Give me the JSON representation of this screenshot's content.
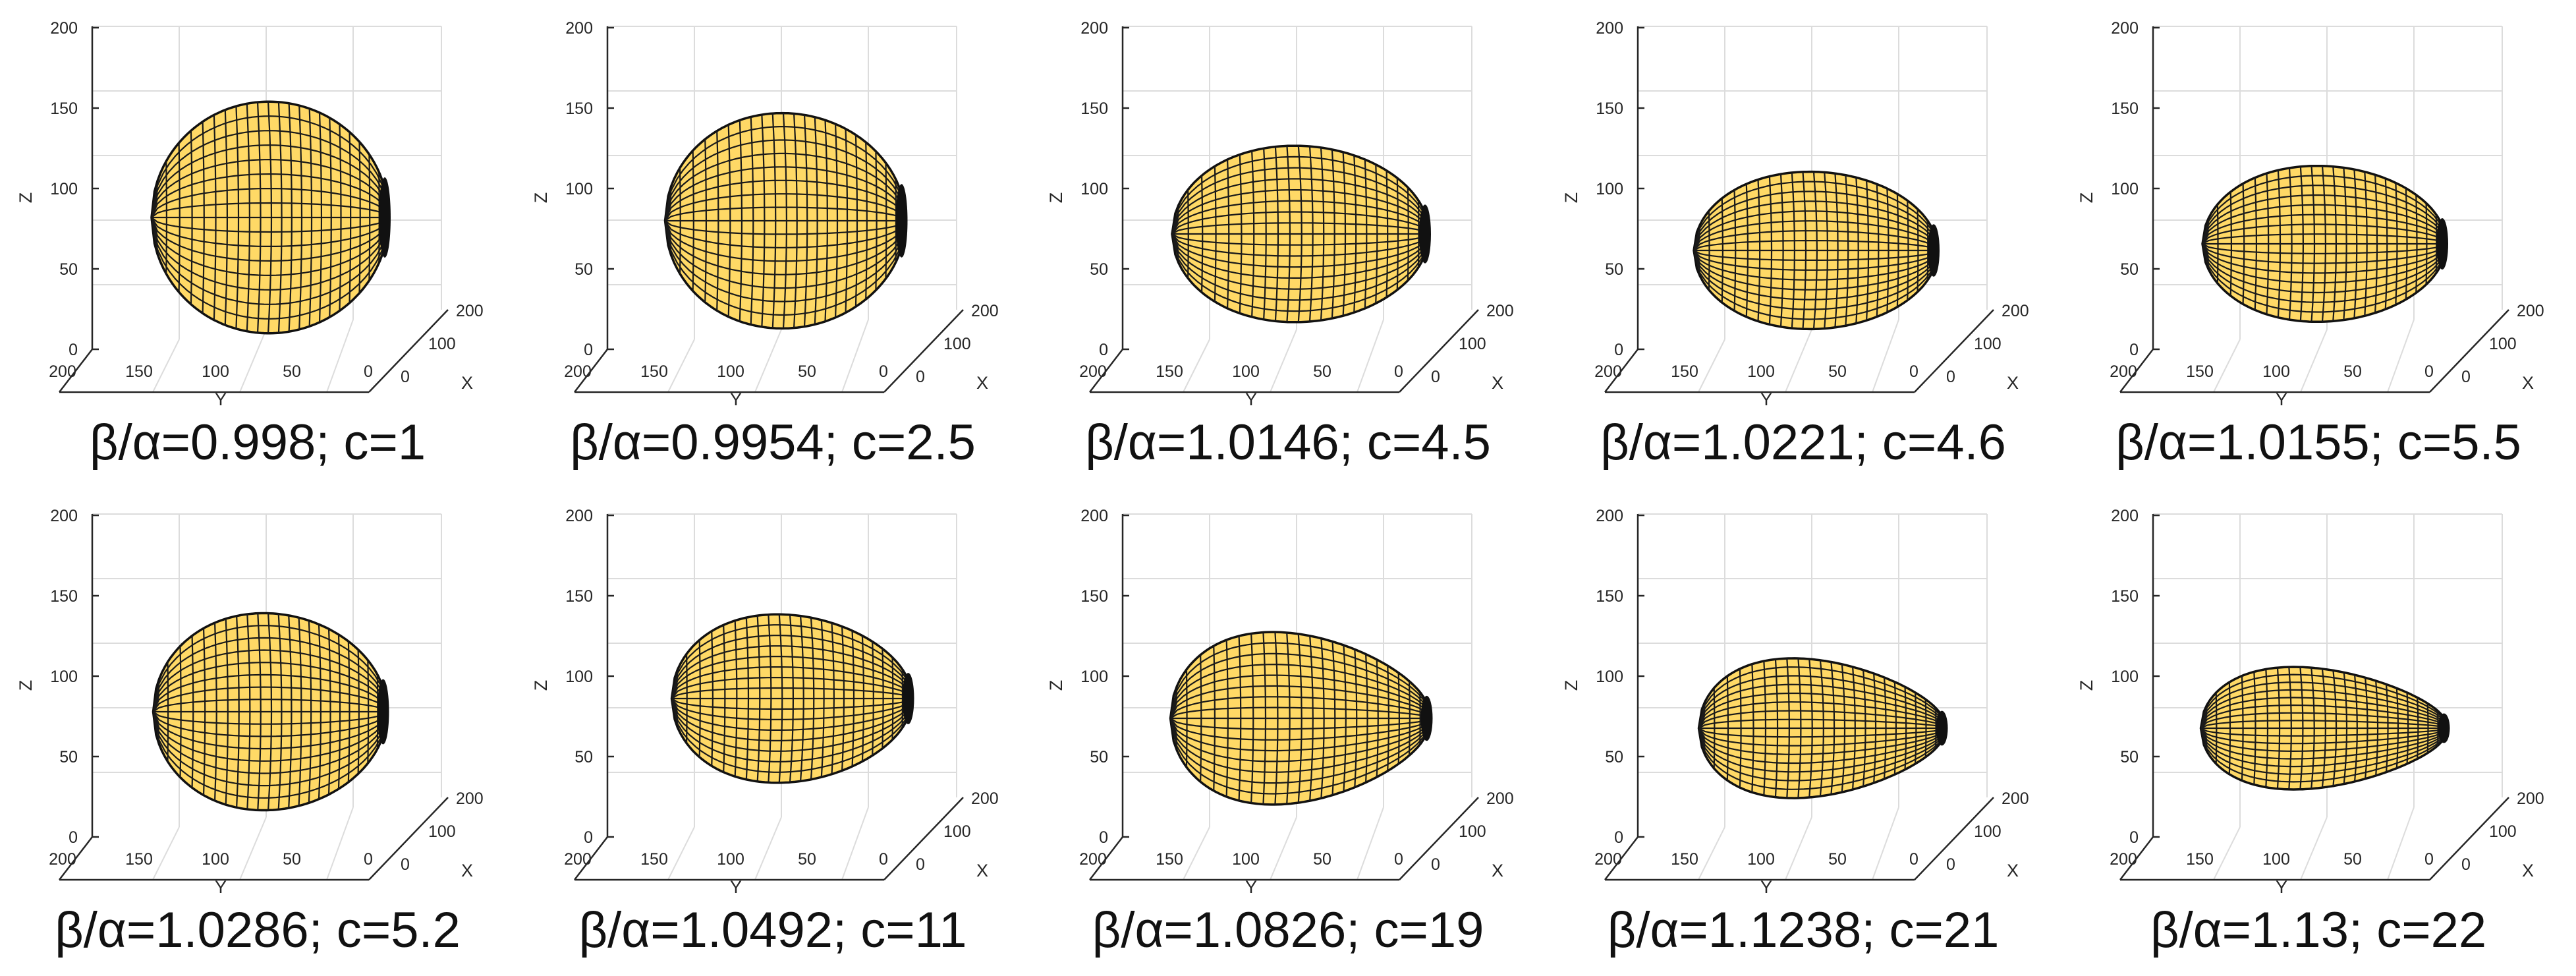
{
  "figure": {
    "axis_labels": {
      "x": "X",
      "y": "Y",
      "z": "Z"
    },
    "z_ticks": [
      "0",
      "50",
      "100",
      "150",
      "200"
    ],
    "y_ticks": [
      "200",
      "150",
      "100",
      "50",
      "0"
    ],
    "x_ticks": [
      "0",
      "100",
      "200"
    ],
    "surface_color": "#FFD966",
    "mesh_color": "#1a1a1a"
  },
  "panels": [
    {
      "caption": "β/α=0.998; c=1",
      "beta_over_alpha": 0.998,
      "c": 1
    },
    {
      "caption": "β/α=0.9954; c=2.5",
      "beta_over_alpha": 0.9954,
      "c": 2.5
    },
    {
      "caption": "β/α=1.0146; c=4.5",
      "beta_over_alpha": 1.0146,
      "c": 4.5
    },
    {
      "caption": "β/α=1.0221; c=4.6",
      "beta_over_alpha": 1.0221,
      "c": 4.6
    },
    {
      "caption": "β/α=1.0155; c=5.5",
      "beta_over_alpha": 1.0155,
      "c": 5.5
    },
    {
      "caption": "β/α=1.0286; c=5.2",
      "beta_over_alpha": 1.0286,
      "c": 5.2
    },
    {
      "caption": "β/α=1.0492; c=11",
      "beta_over_alpha": 1.0492,
      "c": 11
    },
    {
      "caption": "β/α=1.0826; c=19",
      "beta_over_alpha": 1.0826,
      "c": 19
    },
    {
      "caption": "β/α=1.1238; c=21",
      "beta_over_alpha": 1.1238,
      "c": 21
    },
    {
      "caption": "β/α=1.13; c=22",
      "beta_over_alpha": 1.13,
      "c": 22
    }
  ]
}
